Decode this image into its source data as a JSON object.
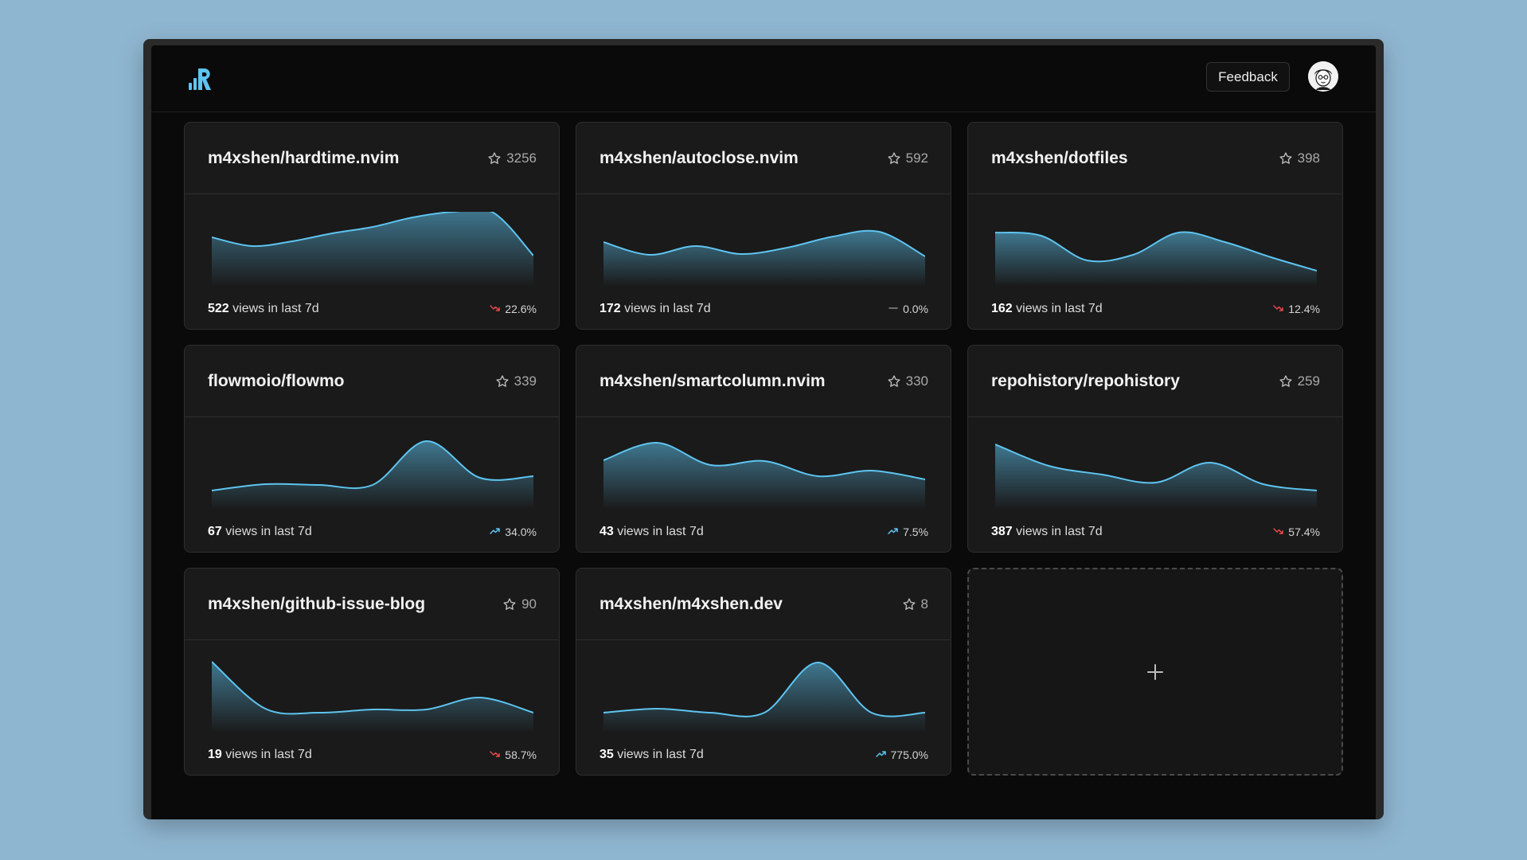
{
  "header": {
    "logo_icon": "repohistory-logo-icon",
    "feedback_label": "Feedback",
    "avatar_icon": "user-avatar-icon"
  },
  "colors": {
    "accent": "#5ec4f0",
    "down": "#e5484d",
    "up": "#5ec4f0",
    "neutral": "#8a8a8a"
  },
  "repos": [
    {
      "name": "m4xshen/hardtime.nvim",
      "stars": "3256",
      "views": "522",
      "views_label": "views in last 7d",
      "change": "22.6%",
      "trend": "down",
      "series": [
        42,
        31,
        37,
        47,
        55,
        67,
        74,
        73,
        19
      ]
    },
    {
      "name": "m4xshen/autoclose.nvim",
      "stars": "592",
      "views": "172",
      "views_label": "views in last 7d",
      "change": "0.0%",
      "trend": "flat",
      "series": [
        36,
        20,
        31,
        21,
        29,
        43,
        49,
        18
      ]
    },
    {
      "name": "m4xshen/dotfiles",
      "stars": "398",
      "views": "162",
      "views_label": "views in last 7d",
      "change": "12.4%",
      "trend": "down",
      "series": [
        48,
        44,
        13,
        20,
        48,
        36,
        17,
        0
      ]
    },
    {
      "name": "flowmoio/flowmo",
      "stars": "339",
      "views": "67",
      "views_label": "views in last 7d",
      "change": "34.0%",
      "trend": "up",
      "series": [
        4,
        12,
        11,
        11,
        66,
        20,
        22
      ]
    },
    {
      "name": "m4xshen/smartcolumn.nvim",
      "stars": "330",
      "views": "43",
      "views_label": "views in last 7d",
      "change": "7.5%",
      "trend": "up",
      "series": [
        42,
        64,
        36,
        41,
        22,
        29,
        18
      ]
    },
    {
      "name": "repohistory/repohistory",
      "stars": "259",
      "views": "387",
      "views_label": "views in last 7d",
      "change": "57.4%",
      "trend": "down",
      "series": [
        62,
        35,
        24,
        14,
        39,
        12,
        4
      ]
    },
    {
      "name": "m4xshen/github-issue-blog",
      "stars": "90",
      "views": "19",
      "views_label": "views in last 7d",
      "change": "58.7%",
      "trend": "down",
      "series": [
        69,
        10,
        5,
        9,
        9,
        24,
        5
      ]
    },
    {
      "name": "m4xshen/m4xshen.dev",
      "stars": "8",
      "views": "35",
      "views_label": "views in last 7d",
      "change": "775.0%",
      "trend": "up",
      "series": [
        5,
        10,
        5,
        5,
        68,
        5,
        5
      ]
    }
  ],
  "add_card": {
    "icon": "plus-icon"
  }
}
